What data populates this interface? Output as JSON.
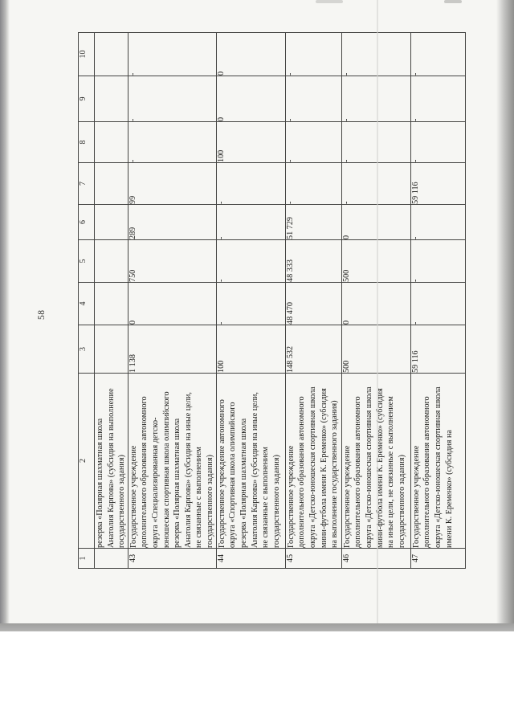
{
  "page": {
    "number": "58"
  },
  "table": {
    "column_headers": [
      "1",
      "2",
      "3",
      "4",
      "5",
      "6",
      "7",
      "8",
      "9",
      "10"
    ],
    "rows": [
      {
        "num": "",
        "name": "резерва «Полярная шахматная школа\nАнатолия Карпова» (субсидия на выполнение\nгосударственного задания)",
        "values": [
          "",
          "",
          "",
          "",
          "",
          "",
          "",
          ""
        ]
      },
      {
        "num": "43",
        "name": "Государственное учреждение\nдополнительного образования автономного\nокруга «Специализированная детско-\nюношеская спортивная школа олимпийского\nрезерва «Полярная шахматная школа\nАнатолия Карпова» (субсидия на иные цели,\nне связанные с выполнением\nгосударственного задания)",
        "values": [
          "1 138",
          "0",
          "750",
          "289",
          "99",
          "-",
          "-",
          "-"
        ]
      },
      {
        "num": "44",
        "name": "Государственное учреждение автономного\nокруга «Спортивная школа олимпийского\nрезерва «Полярная шахматная школа\nАнатолия Карпова» (субсидия на иные цели,\nне связанные с выполнением\nгосударственного задания)",
        "values": [
          "100",
          "-",
          "-",
          "-",
          "-",
          "100",
          "0",
          "0"
        ]
      },
      {
        "num": "45",
        "name": "Государственное учреждение\nдополнительного образования  автономного\nокруга «Детско-юношеская спортивная школа\nмини-футбола имени К. Еременко» (субсидия\nна выполнение государственного задания)",
        "values": [
          "148 532",
          "48 470",
          "48 333",
          "51 729",
          "-",
          "-",
          "-",
          "-"
        ]
      },
      {
        "num": "46",
        "name": "Государственное учреждение\nдополнительного образования автономного\nокруга «Детско-юношеская спортивная школа\nмини-футбола имени К. Еременко» (субсидия\nна иные цели, не связанные с выполнением\nгосударственного задания)",
        "values": [
          "500",
          "0",
          "500",
          "0",
          "-",
          "-",
          "-",
          "-"
        ]
      },
      {
        "num": "47",
        "name": "Государственное учреждение\nдополнительного образования  автономного\nокруга «Детско-юношеская спортивная школа\nимени К. Еременко» (субсидия на",
        "values": [
          "59 116",
          "-",
          "-",
          "-",
          "59 116",
          "-",
          "-",
          "-"
        ]
      }
    ]
  }
}
